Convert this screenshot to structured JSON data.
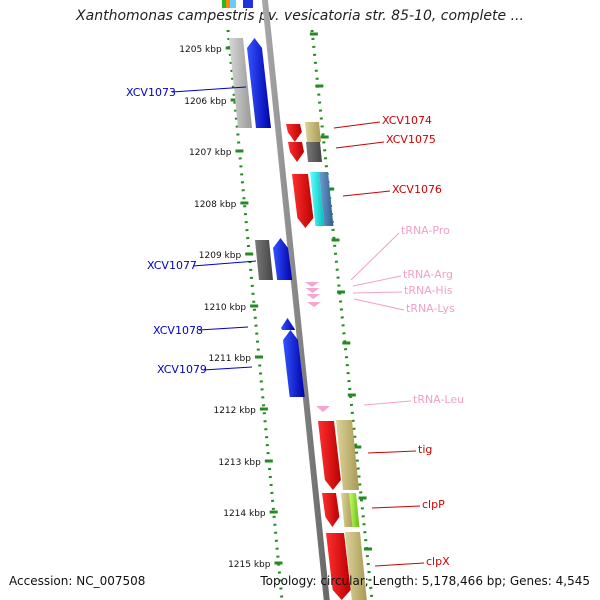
{
  "header": {
    "title": "Xanthomonas campestris pv. vesicatoria str. 85-10, complete ..."
  },
  "footer": {
    "accession": "Accession: NC_007508",
    "summary": "Topology: circular; Length: 5,178,466 bp; Genes: 4,545"
  },
  "axis": {
    "unit": "kbp",
    "ticks": [
      "1205 kbp",
      "1206 kbp",
      "1207 kbp",
      "1208 kbp",
      "1209 kbp",
      "1210 kbp",
      "1211 kbp",
      "1212 kbp",
      "1213 kbp",
      "1214 kbp",
      "1215 kbp"
    ]
  },
  "colors": {
    "cds_blue": "#0000ee",
    "cds_red": "#ee0000",
    "cds_gray": "#666666",
    "cds_lightgray": "#bbbbbb",
    "trna_pink": "#f4a6cf",
    "backbone": "#888888",
    "tick_green": "#228b22",
    "tan": "#c8bc7e",
    "cyan": "#00e5e5",
    "steelblue": "#4a7fb5",
    "lime": "#9be22d"
  },
  "labels_left": [
    {
      "text": "XCV1073",
      "color": "#0000cc"
    },
    {
      "text": "XCV1077",
      "color": "#0000cc"
    },
    {
      "text": "XCV1078",
      "color": "#0000cc"
    },
    {
      "text": "XCV1079",
      "color": "#0000cc"
    }
  ],
  "labels_right": [
    {
      "text": "XCV1074",
      "color": "#cc0000"
    },
    {
      "text": "XCV1075",
      "color": "#cc0000"
    },
    {
      "text": "XCV1076",
      "color": "#cc0000"
    },
    {
      "text": "tRNA-Pro",
      "color": "#f0a0c8"
    },
    {
      "text": "tRNA-Arg",
      "color": "#f0a0c8"
    },
    {
      "text": "tRNA-His",
      "color": "#f0a0c8"
    },
    {
      "text": "tRNA-Lys",
      "color": "#f0a0c8"
    },
    {
      "text": "tRNA-Leu",
      "color": "#f0a0c8"
    },
    {
      "text": "tig",
      "color": "#cc0000"
    },
    {
      "text": "clpP",
      "color": "#cc0000"
    },
    {
      "text": "clpX",
      "color": "#cc0000"
    }
  ]
}
